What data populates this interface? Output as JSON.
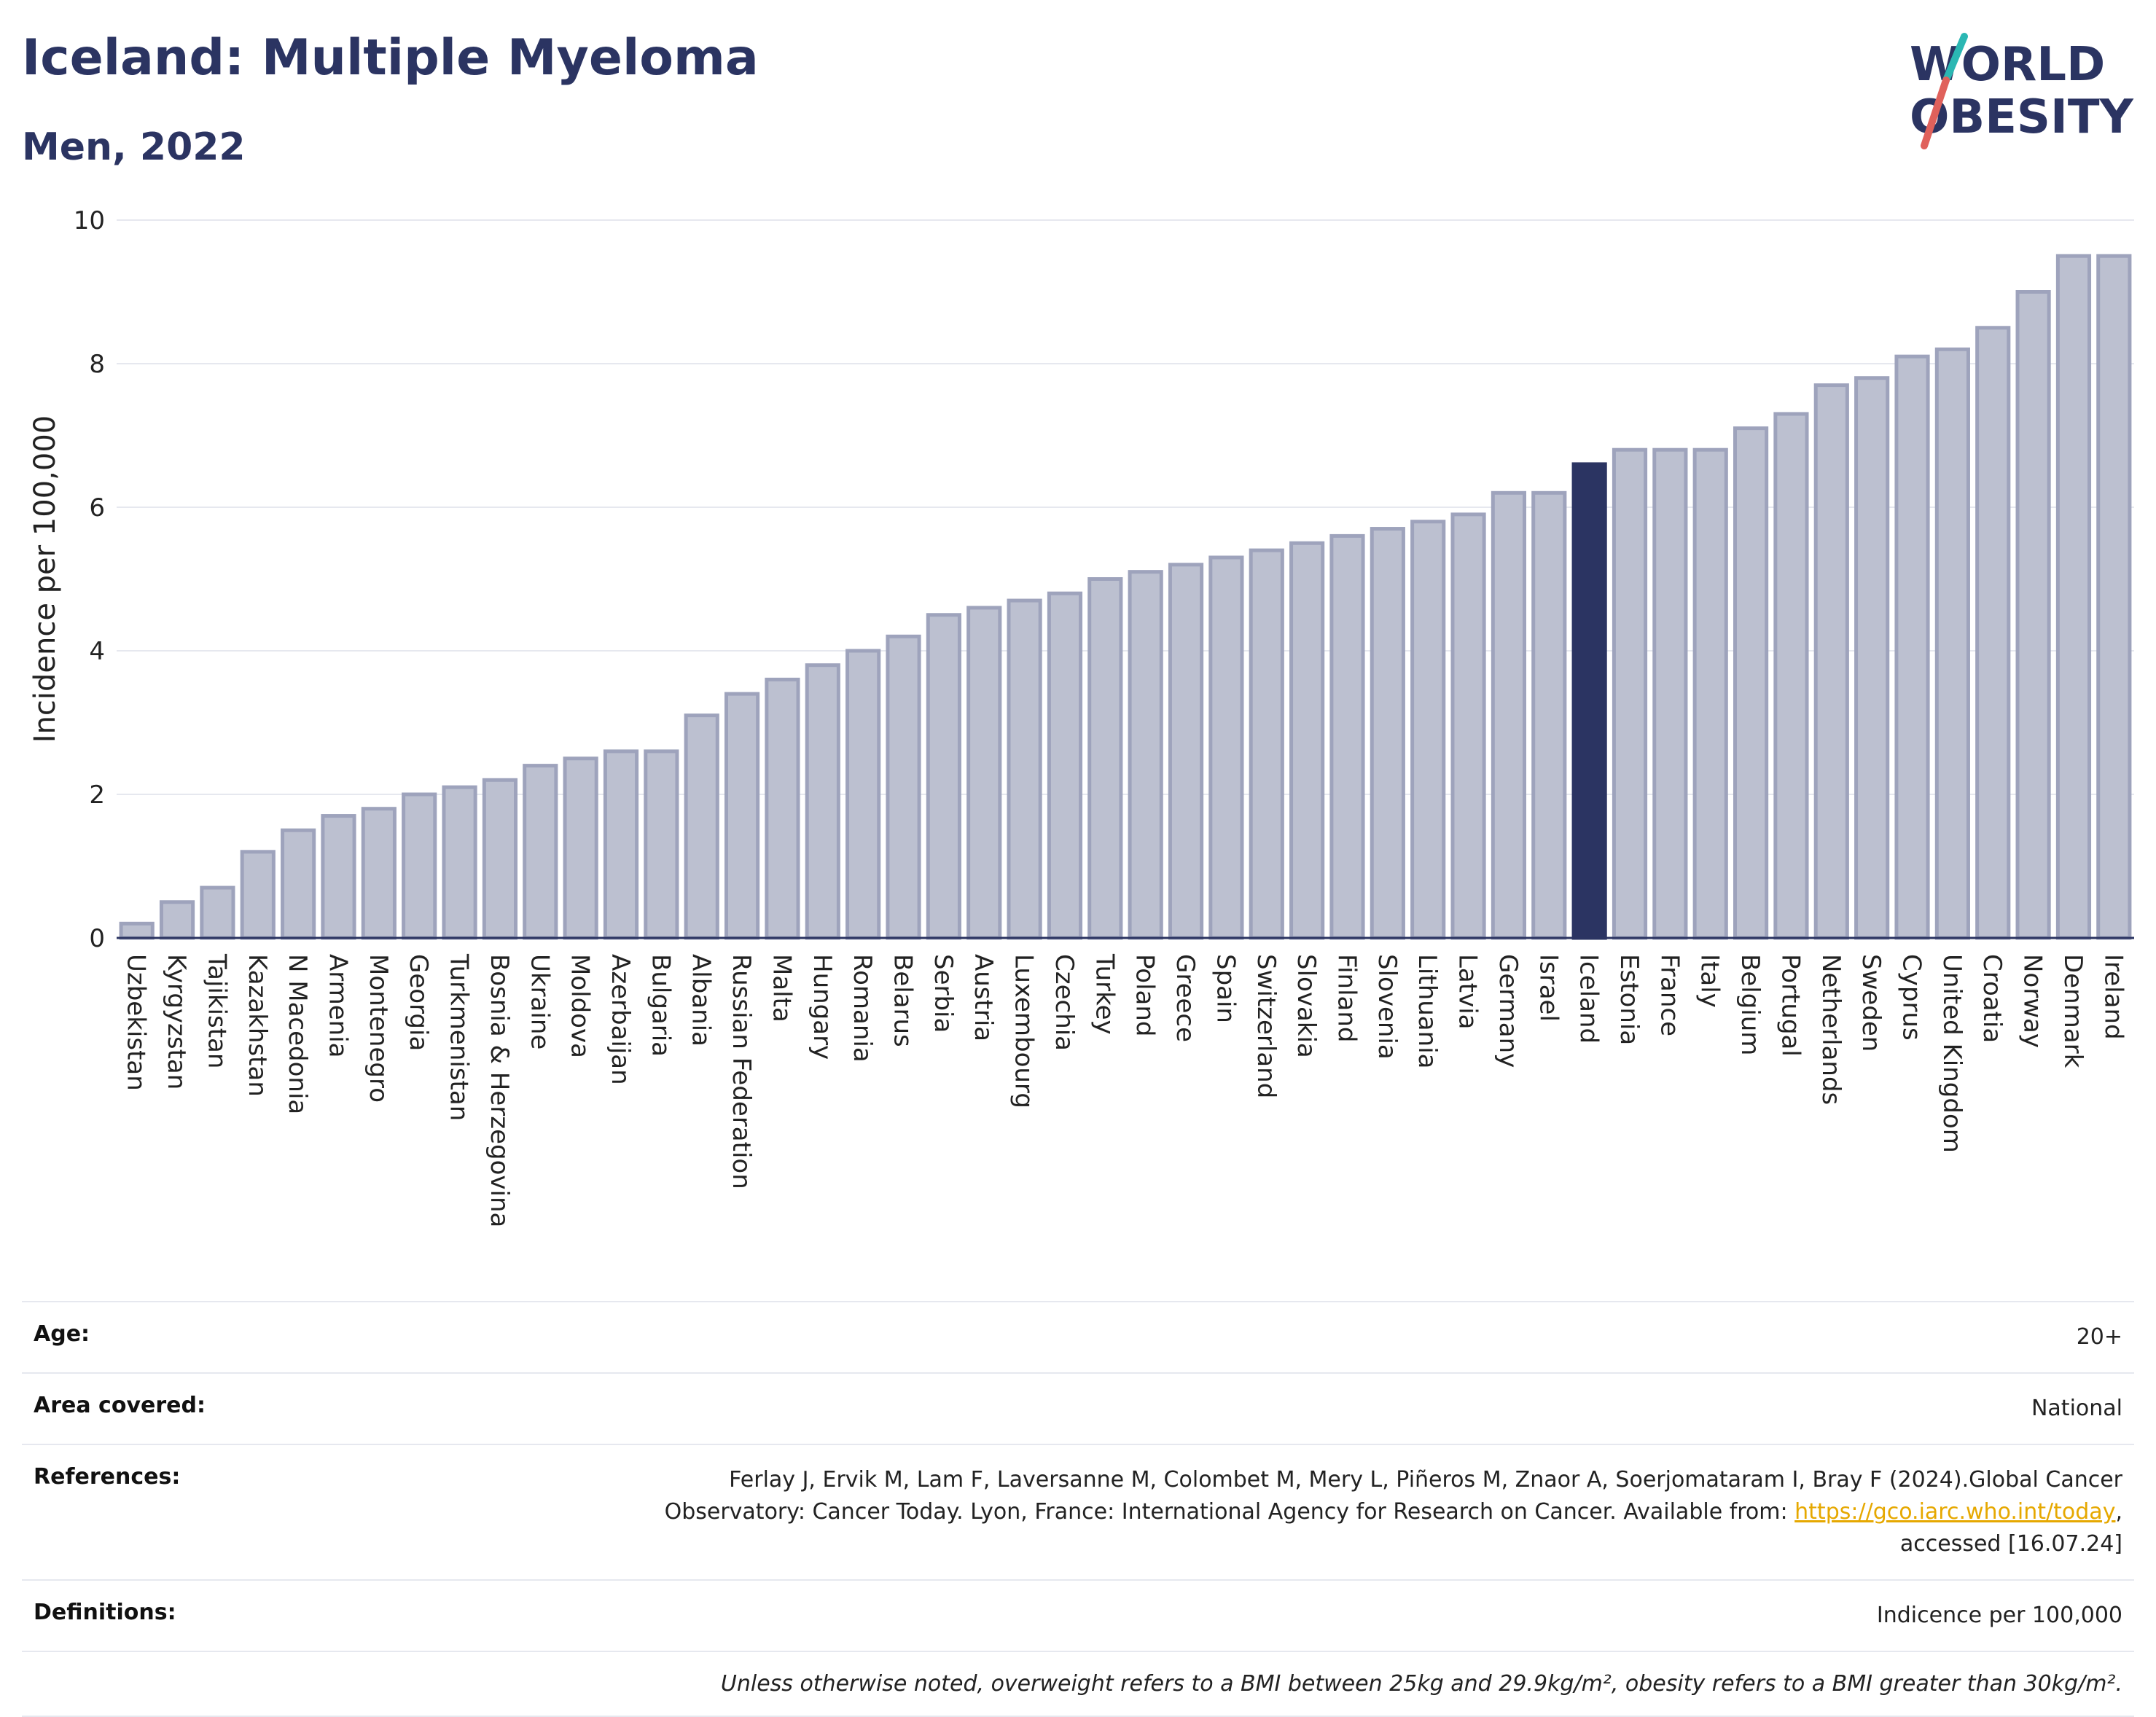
{
  "header": {
    "title": "Iceland: Multiple Myeloma",
    "subtitle": "Men, 2022",
    "logo_line1": "WORLD",
    "logo_line2": "OBESITY"
  },
  "colors": {
    "bar": "#bcc0d0",
    "bar_border": "#9ea3bc",
    "highlight": "#2b3462",
    "title": "#2b3462",
    "logo_accent_teal": "#2bb7b3",
    "logo_accent_red": "#e0615b"
  },
  "chart_data": {
    "type": "bar",
    "ylabel": "Incidence per 100,000",
    "xlabel": "",
    "ylim": [
      0,
      10
    ],
    "yticks": [
      0,
      2,
      4,
      6,
      8,
      10
    ],
    "grid": true,
    "highlight": "Iceland",
    "categories": [
      "Uzbekistan",
      "Kyrgyzstan",
      "Tajikistan",
      "Kazakhstan",
      "N Macedonia",
      "Armenia",
      "Montenegro",
      "Georgia",
      "Turkmenistan",
      "Bosnia & Herzegovina",
      "Ukraine",
      "Moldova",
      "Azerbaijan",
      "Bulgaria",
      "Albania",
      "Russian Federation",
      "Malta",
      "Hungary",
      "Romania",
      "Belarus",
      "Serbia",
      "Austria",
      "Luxembourg",
      "Czechia",
      "Turkey",
      "Poland",
      "Greece",
      "Spain",
      "Switzerland",
      "Slovakia",
      "Finland",
      "Slovenia",
      "Lithuania",
      "Latvia",
      "Germany",
      "Israel",
      "Iceland",
      "Estonia",
      "France",
      "Italy",
      "Belgium",
      "Portugal",
      "Netherlands",
      "Sweden",
      "Cyprus",
      "United Kingdom",
      "Croatia",
      "Norway",
      "Denmark",
      "Ireland"
    ],
    "values": [
      0.2,
      0.5,
      0.7,
      1.2,
      1.5,
      1.7,
      1.8,
      2.0,
      2.1,
      2.2,
      2.4,
      2.5,
      2.6,
      2.6,
      3.1,
      3.4,
      3.6,
      3.8,
      4.0,
      4.2,
      4.5,
      4.6,
      4.7,
      4.8,
      5.0,
      5.1,
      5.2,
      5.3,
      5.4,
      5.5,
      5.6,
      5.7,
      5.8,
      5.9,
      6.2,
      6.2,
      6.6,
      6.8,
      6.8,
      6.8,
      7.1,
      7.3,
      7.7,
      7.8,
      8.1,
      8.2,
      8.5,
      9.0,
      9.5,
      9.5
    ]
  },
  "meta": {
    "age_label": "Age:",
    "age_value": "20+",
    "area_label": "Area covered:",
    "area_value": "National",
    "references_label": "References:",
    "references_text_1": "Ferlay J, Ervik M, Lam F, Laversanne M, Colombet M, Mery L, Piñeros M, Znaor A, Soerjomataram I, Bray F (2024).Global Cancer",
    "references_text_2": "Observatory: Cancer Today. Lyon, France: International Agency for Research on Cancer. Available from: ",
    "references_link": "https://gco.iarc.who.int/today",
    "references_text_3": "accessed [16.07.24]",
    "definitions_label": "Definitions:",
    "definitions_value": "Indicence per 100,000",
    "note": "Unless otherwise noted, overweight refers to a BMI between 25kg and 29.9kg/m², obesity refers to a BMI greater than 30kg/m²."
  }
}
